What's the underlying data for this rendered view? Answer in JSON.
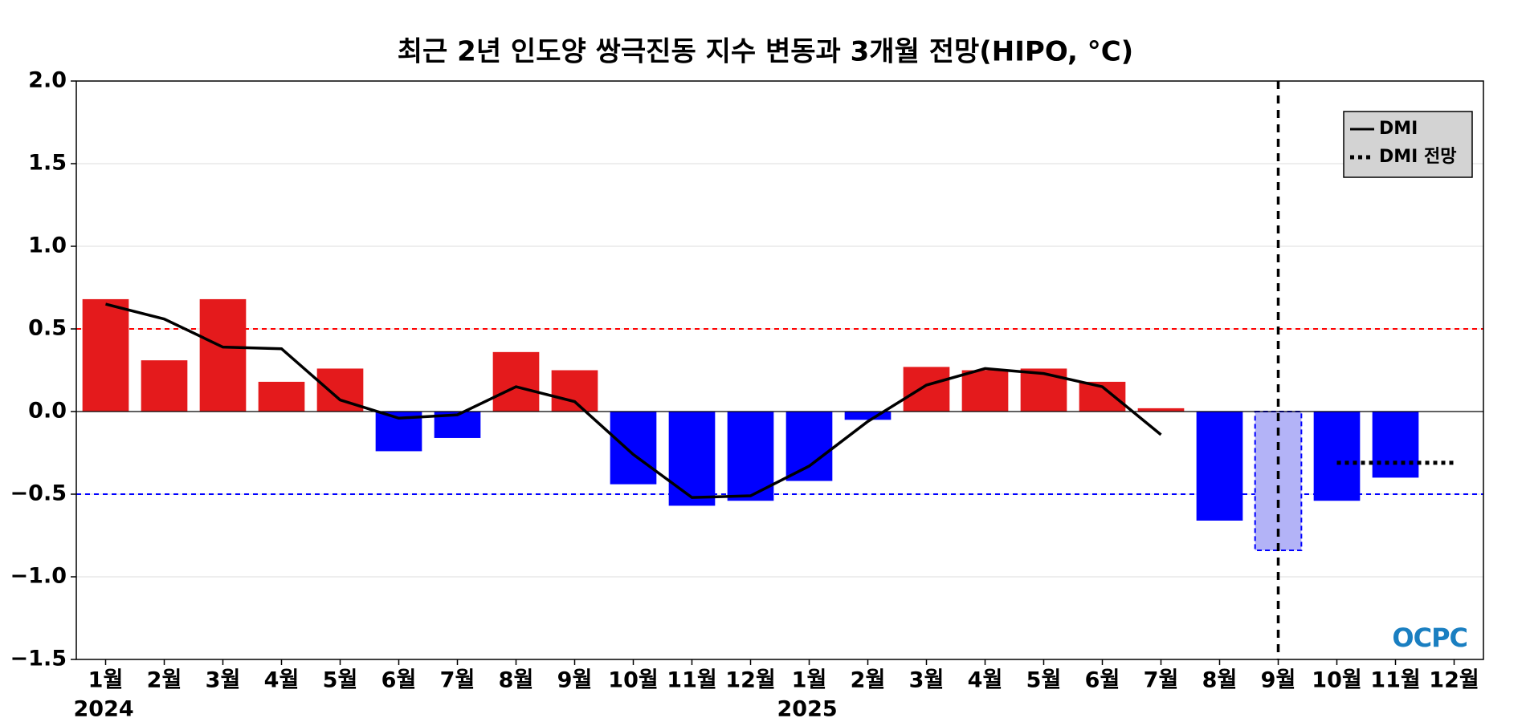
{
  "chart_data": {
    "type": "bar",
    "title": "최근 2년 인도양 쌍극진동 지수 변동과 3개월 전망(HIPO, °C)",
    "categories": [
      "1월",
      "2월",
      "3월",
      "4월",
      "5월",
      "6월",
      "7월",
      "8월",
      "9월",
      "10월",
      "11월",
      "12월",
      "1월",
      "2월",
      "3월",
      "4월",
      "5월",
      "6월",
      "7월",
      "8월",
      "9월",
      "10월",
      "11월",
      "12월"
    ],
    "years": [
      "2024",
      "2025"
    ],
    "values": [
      0.68,
      0.31,
      0.68,
      0.18,
      0.26,
      -0.24,
      -0.16,
      0.36,
      0.25,
      -0.44,
      -0.57,
      -0.54,
      -0.42,
      -0.05,
      0.27,
      0.25,
      0.26,
      0.18,
      0.02,
      -0.66,
      -0.84,
      -0.54,
      -0.4,
      0.0
    ],
    "bar_colors": [
      "#e41a1c",
      "#e41a1c",
      "#e41a1c",
      "#e41a1c",
      "#e41a1c",
      "#0000ff",
      "#0000ff",
      "#e41a1c",
      "#e41a1c",
      "#0000ff",
      "#0000ff",
      "#0000ff",
      "#0000ff",
      "#0000ff",
      "#e41a1c",
      "#e41a1c",
      "#e41a1c",
      "#e41a1c",
      "#e41a1c",
      "#0000ff",
      "#b3b3f7",
      "#0000ff",
      "#0000ff",
      "#0000ff"
    ],
    "forecast_bar": 20,
    "series": [
      {
        "name": "DMI",
        "color": "#000000",
        "style": "solid",
        "values": [
          0.65,
          0.56,
          0.39,
          0.38,
          0.07,
          -0.04,
          -0.02,
          0.15,
          0.06,
          -0.26,
          -0.52,
          -0.51,
          -0.33,
          -0.06,
          0.16,
          0.26,
          0.23,
          0.15,
          -0.14,
          null,
          null,
          null,
          null,
          null
        ]
      },
      {
        "name": "DMI 전망",
        "color": "#000000",
        "style": "dotted",
        "values": [
          null,
          null,
          null,
          null,
          null,
          null,
          null,
          null,
          null,
          null,
          null,
          null,
          null,
          null,
          null,
          null,
          null,
          null,
          null,
          null,
          null,
          -0.31,
          -0.31,
          -0.31
        ]
      }
    ],
    "thresholds": [
      {
        "value": 0.5,
        "color": "#ff0000"
      },
      {
        "value": -0.5,
        "color": "#0000ff"
      }
    ],
    "ylim": [
      -1.5,
      2.0
    ],
    "yticks": [
      {
        "value": -1.5,
        "label": "−1.5"
      },
      {
        "value": -1.0,
        "label": "−1.0"
      },
      {
        "value": -0.5,
        "label": "−0.5"
      },
      {
        "value": 0,
        "label": "0.0"
      },
      {
        "value": 0.5,
        "label": "0.5"
      },
      {
        "value": 1.0,
        "label": "1.0"
      },
      {
        "value": 1.5,
        "label": "1.5"
      },
      {
        "value": 2.0,
        "label": "2.0"
      }
    ],
    "grid": true,
    "legend": "upper right",
    "logo": "OCPC"
  }
}
